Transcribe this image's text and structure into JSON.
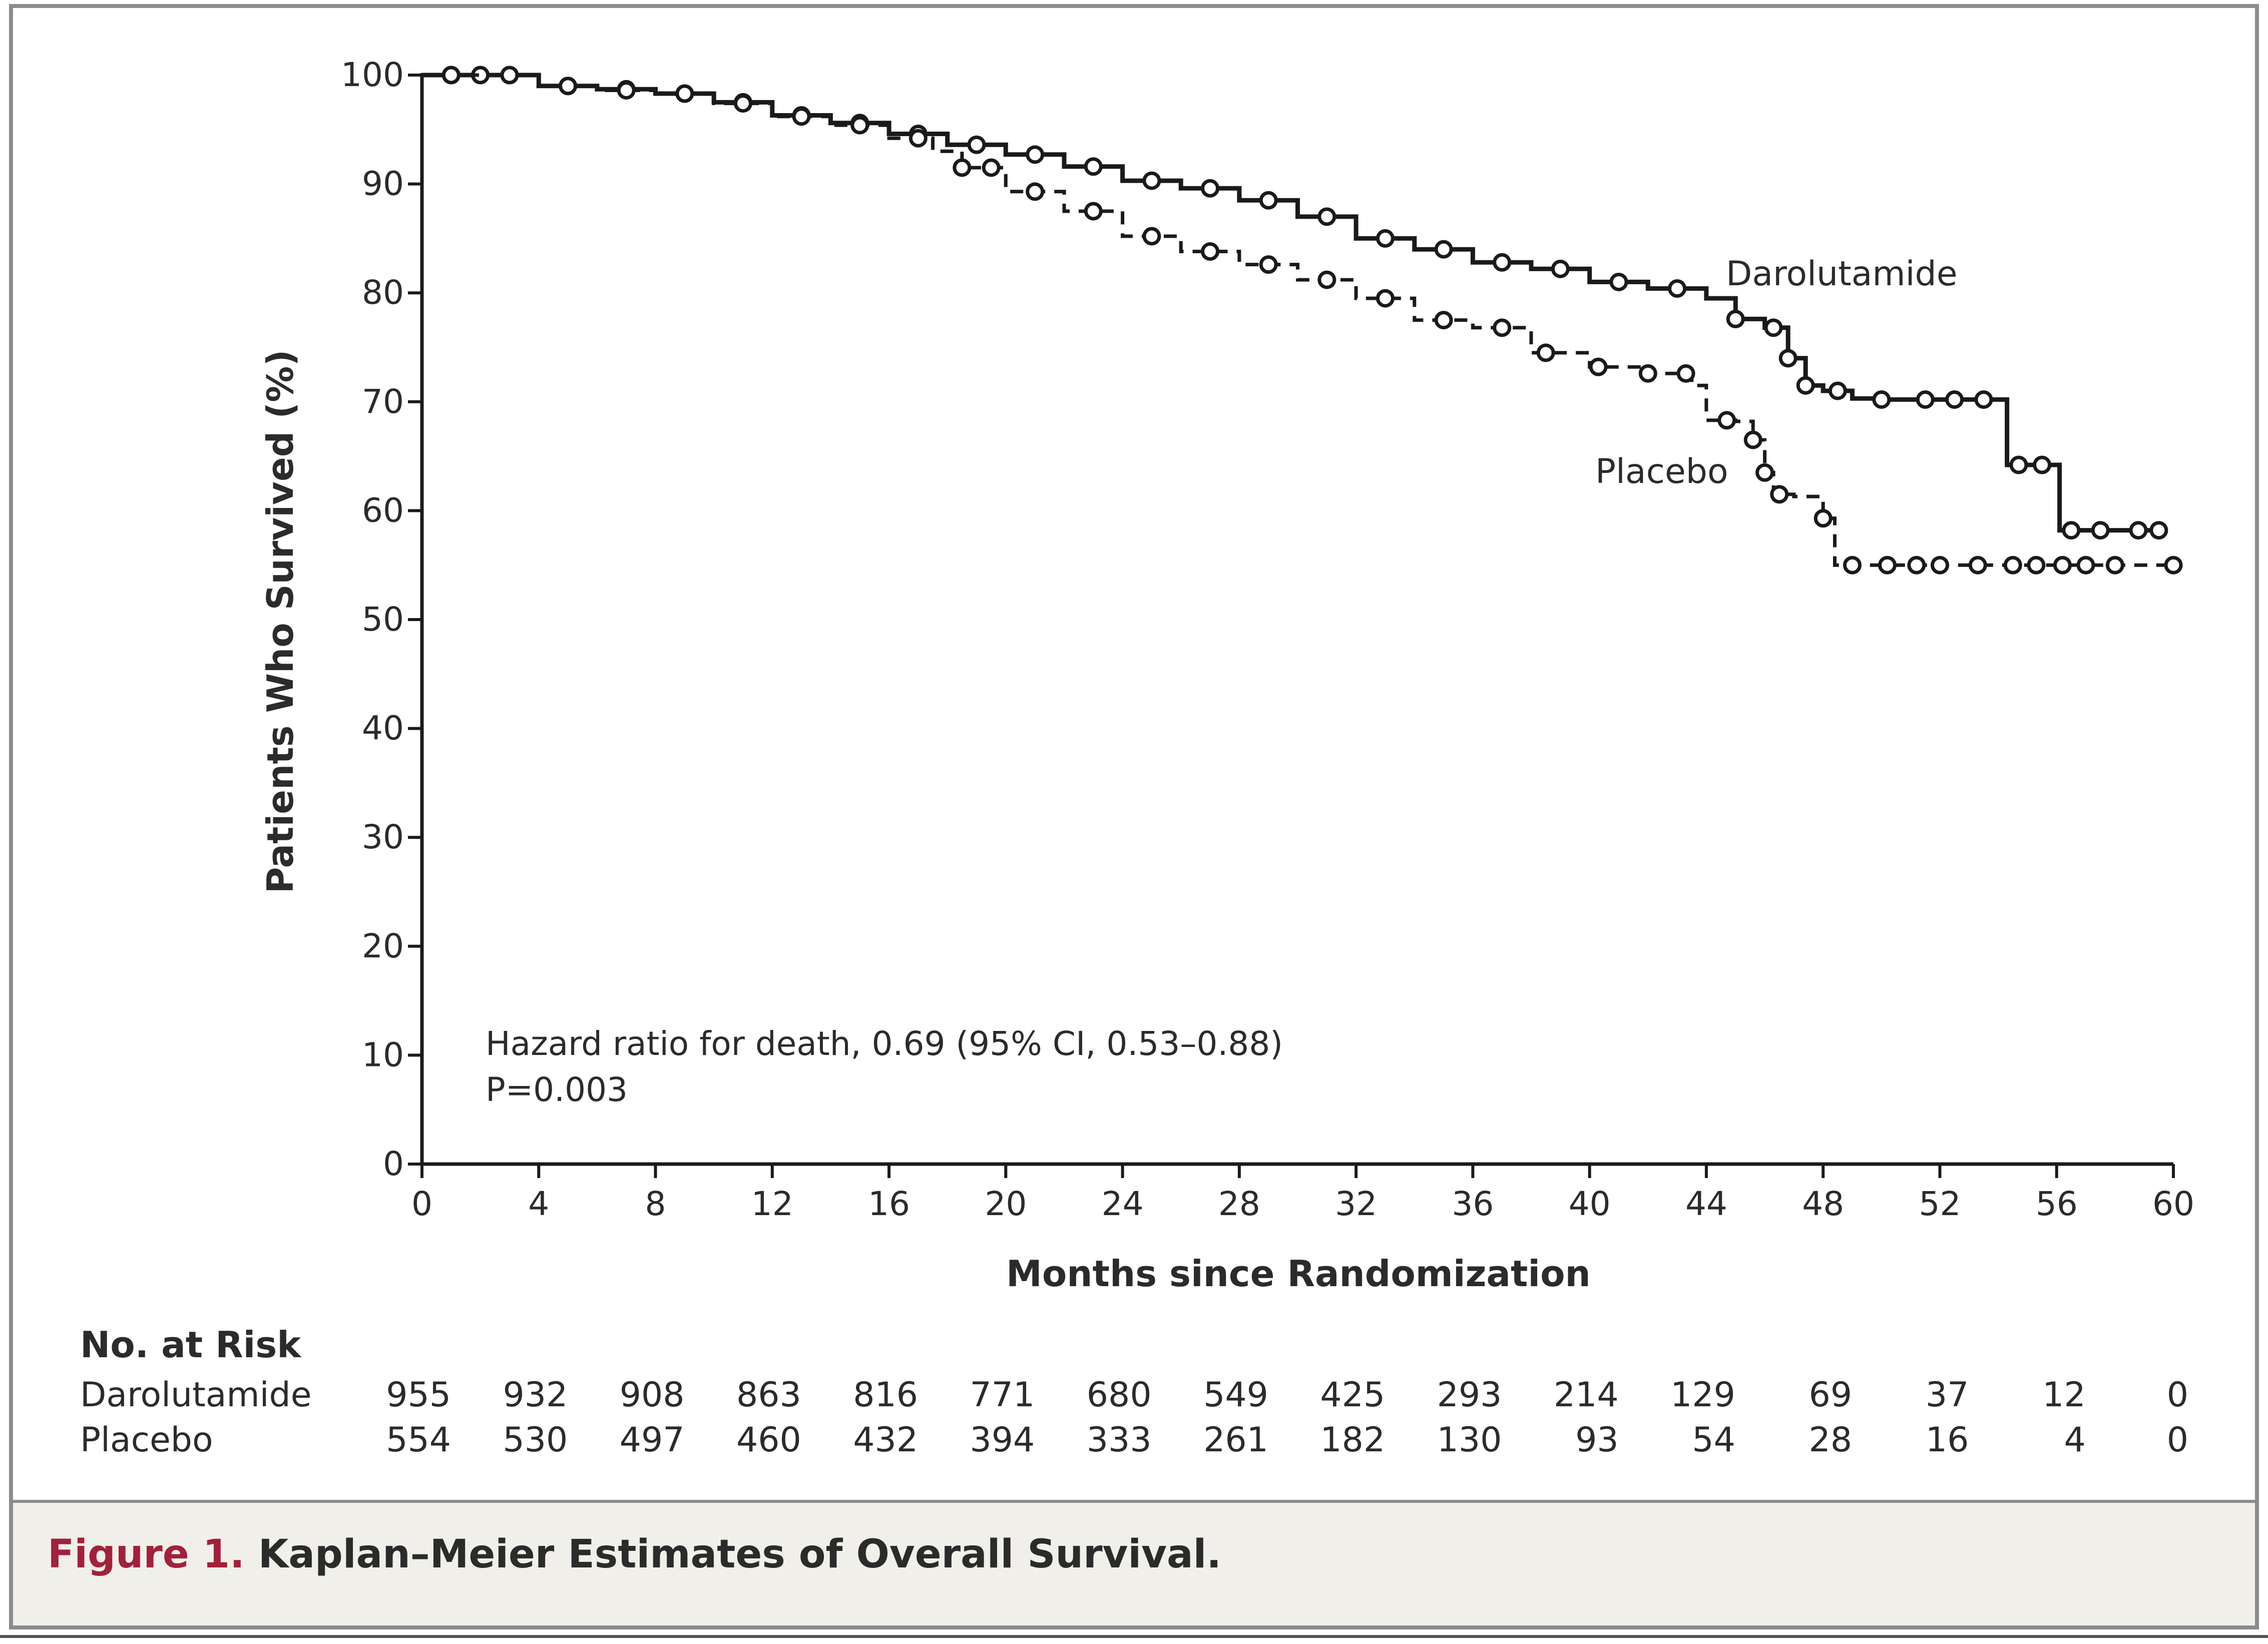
{
  "chart_data": {
    "type": "line",
    "subtype": "kaplan-meier",
    "xlabel": "Months since Randomization",
    "ylabel": "Patients Who Survived (%)",
    "xlim": [
      0,
      60
    ],
    "ylim": [
      0,
      100
    ],
    "xticks": [
      0,
      4,
      8,
      12,
      16,
      20,
      24,
      28,
      32,
      36,
      40,
      44,
      48,
      52,
      56,
      60
    ],
    "yticks": [
      0,
      10,
      20,
      30,
      40,
      50,
      60,
      70,
      80,
      90,
      100
    ],
    "grid": false,
    "series": [
      {
        "name": "Darolutamide",
        "color": "#1a1a1a",
        "dash": "solid",
        "points": [
          [
            0,
            100
          ],
          [
            2,
            100
          ],
          [
            4,
            99
          ],
          [
            6,
            98.7
          ],
          [
            8,
            98.3
          ],
          [
            10,
            97.5
          ],
          [
            12,
            96.3
          ],
          [
            14,
            95.6
          ],
          [
            16,
            94.6
          ],
          [
            18,
            93.6
          ],
          [
            20,
            92.7
          ],
          [
            22,
            91.6
          ],
          [
            24,
            90.3
          ],
          [
            26,
            89.6
          ],
          [
            28,
            88.5
          ],
          [
            30,
            87
          ],
          [
            32,
            85
          ],
          [
            34,
            84
          ],
          [
            36,
            82.8
          ],
          [
            38,
            82.2
          ],
          [
            40,
            81
          ],
          [
            42,
            80.4
          ],
          [
            44,
            79.5
          ],
          [
            45,
            77.6
          ],
          [
            46,
            76.8
          ],
          [
            46.8,
            74
          ],
          [
            47.4,
            71.5
          ],
          [
            48,
            71
          ],
          [
            49,
            70.3
          ],
          [
            50,
            70.2
          ],
          [
            54.2,
            70.2
          ],
          [
            54.3,
            64.2
          ],
          [
            56,
            64.2
          ],
          [
            56.1,
            58.2
          ],
          [
            59.5,
            58.2
          ]
        ],
        "censor_x": [
          1,
          2,
          3,
          5,
          7,
          9,
          11,
          13,
          15,
          17,
          19,
          21,
          23,
          25,
          27,
          29,
          31,
          33,
          35,
          37,
          39,
          41,
          43,
          45,
          46.3,
          46.8,
          47.4,
          48.5,
          50,
          51.5,
          52.5,
          53.5,
          54.7,
          55.5,
          56.5,
          57.5,
          58.8,
          59.5
        ]
      },
      {
        "name": "Placebo",
        "color": "#1a1a1a",
        "dash": "dashed",
        "points": [
          [
            0,
            100
          ],
          [
            2,
            100
          ],
          [
            4,
            99
          ],
          [
            6,
            98.6
          ],
          [
            8,
            98.3
          ],
          [
            10,
            97.4
          ],
          [
            12,
            96.2
          ],
          [
            14,
            95.4
          ],
          [
            16,
            94.2
          ],
          [
            17.5,
            93
          ],
          [
            18.5,
            91.5
          ],
          [
            20,
            89.3
          ],
          [
            22,
            87.5
          ],
          [
            24,
            85.2
          ],
          [
            26,
            83.8
          ],
          [
            28,
            82.6
          ],
          [
            30,
            81.2
          ],
          [
            32,
            79.5
          ],
          [
            34,
            77.5
          ],
          [
            36,
            76.8
          ],
          [
            38,
            74.5
          ],
          [
            40,
            73.2
          ],
          [
            42,
            72.6
          ],
          [
            43.5,
            71.5
          ],
          [
            44,
            68.3
          ],
          [
            45,
            68.2
          ],
          [
            45.6,
            66.5
          ],
          [
            46,
            63.5
          ],
          [
            46.3,
            61.5
          ],
          [
            47,
            61.3
          ],
          [
            48,
            59.3
          ],
          [
            48.4,
            55
          ],
          [
            60,
            55
          ]
        ],
        "censor_x": [
          1,
          3,
          5,
          7,
          9,
          11,
          13,
          15,
          17,
          18.5,
          19.5,
          21,
          23,
          25,
          27,
          29,
          31,
          33,
          35,
          37,
          38.5,
          40.3,
          42,
          43.3,
          44.7,
          45.6,
          46,
          46.5,
          48,
          49,
          50.2,
          51.2,
          52,
          53.3,
          54.5,
          55.3,
          56.2,
          57,
          58,
          60
        ]
      }
    ],
    "annotations": [
      "Hazard ratio for death, 0.69 (95% CI, 0.53–0.88)",
      "P=0.003"
    ],
    "risk_table": {
      "title": "No. at Risk",
      "rows": [
        {
          "label": "Darolutamide",
          "values": [
            "955",
            "932",
            "908",
            "863",
            "816",
            "771",
            "680",
            "549",
            "425",
            "293",
            "214",
            "129",
            "69",
            "37",
            "12",
            "0"
          ]
        },
        {
          "label": "Placebo",
          "values": [
            "554",
            "530",
            "497",
            "460",
            "432",
            "394",
            "333",
            "261",
            "182",
            "130",
            "93",
            "54",
            "28",
            "16",
            "4",
            "0"
          ]
        }
      ]
    }
  },
  "caption": {
    "label": "Figure 1.",
    "text": "Kaplan–Meier Estimates of Overall Survival."
  }
}
